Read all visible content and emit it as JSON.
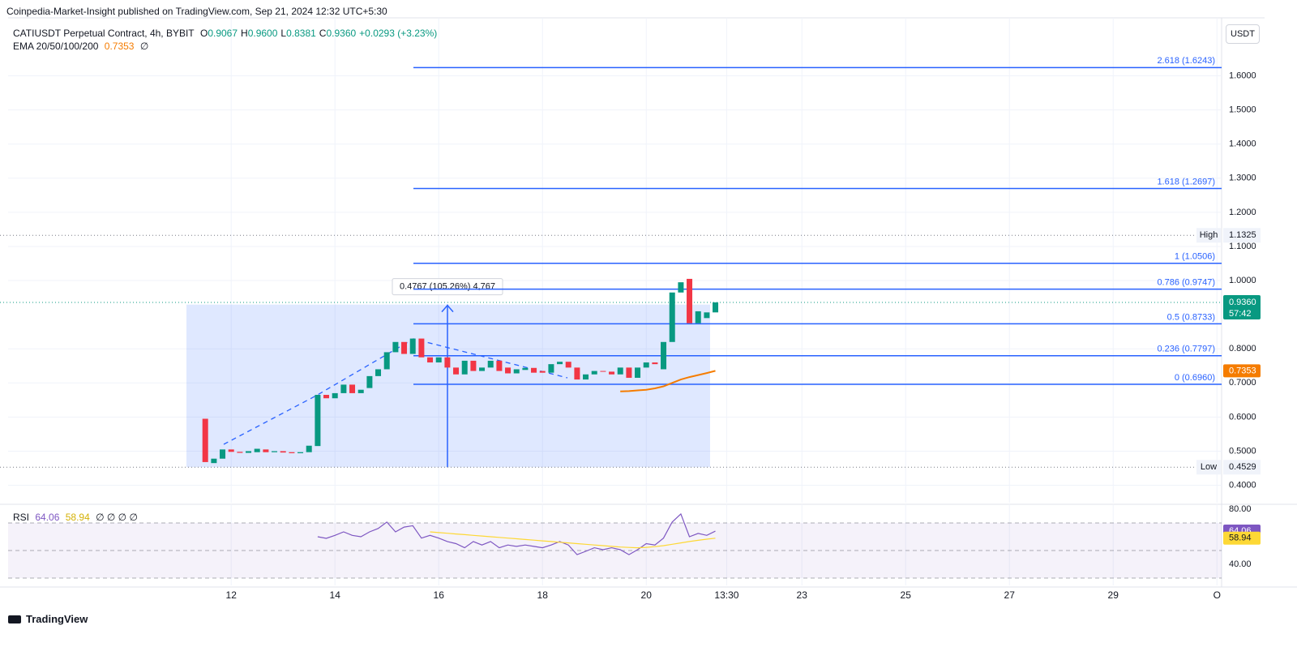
{
  "header": {
    "published": "Coinpedia-Market-Insight published on TradingView.com, Sep 21, 2024 12:32 UTC+5:30",
    "currency_button": "USDT"
  },
  "footer": {
    "logo": "TradingView"
  },
  "chart_data": {
    "type": "candlestick",
    "title": "CATIUSDT Perpetual Contract, 4h, BYBIT",
    "ohlc_legend": [
      {
        "key": "O",
        "text": "0.9067"
      },
      {
        "key": "H",
        "text": "0.9600"
      },
      {
        "key": "L",
        "text": "0.8381"
      },
      {
        "key": "C",
        "text": "0.9360"
      }
    ],
    "change": "+0.0293 (+3.23%)",
    "up_color": "#089981",
    "down_color": "#f23645",
    "x": [
      11.5,
      11.667,
      11.833,
      12,
      12.167,
      12.333,
      12.5,
      12.667,
      12.833,
      13,
      13.167,
      13.333,
      13.5,
      13.667,
      13.833,
      14,
      14.167,
      14.333,
      14.5,
      14.667,
      14.833,
      15,
      15.167,
      15.333,
      15.5,
      15.667,
      15.833,
      16,
      16.167,
      16.333,
      16.5,
      16.667,
      16.833,
      17,
      17.167,
      17.333,
      17.5,
      17.667,
      17.833,
      18,
      18.167,
      18.333,
      18.5,
      18.667,
      18.833,
      19,
      19.167,
      19.333,
      19.5,
      19.667,
      19.833,
      20,
      20.167,
      20.333,
      20.5,
      20.667,
      20.833,
      21,
      21.167,
      21.333
    ],
    "open": [
      0.595,
      0.465,
      0.478,
      0.505,
      0.498,
      0.495,
      0.497,
      0.505,
      0.497,
      0.5,
      0.497,
      0.494,
      0.497,
      0.515,
      0.665,
      0.655,
      0.67,
      0.695,
      0.67,
      0.685,
      0.72,
      0.74,
      0.79,
      0.82,
      0.785,
      0.83,
      0.775,
      0.76,
      0.775,
      0.745,
      0.725,
      0.765,
      0.735,
      0.745,
      0.765,
      0.745,
      0.728,
      0.738,
      0.744,
      0.735,
      0.73,
      0.755,
      0.762,
      0.745,
      0.71,
      0.725,
      0.735,
      0.733,
      0.725,
      0.745,
      0.715,
      0.745,
      0.76,
      0.74,
      0.82,
      0.965,
      1.005,
      0.875,
      0.89,
      0.9067
    ],
    "high": {
      "label": "High",
      "value": 1.1325
    },
    "low": {
      "label": "Low",
      "value": 0.4529
    },
    "close": [
      0.468,
      0.478,
      0.505,
      0.498,
      0.495,
      0.5,
      0.507,
      0.497,
      0.5,
      0.496,
      0.494,
      0.497,
      0.516,
      0.665,
      0.655,
      0.67,
      0.695,
      0.67,
      0.68,
      0.72,
      0.74,
      0.79,
      0.82,
      0.785,
      0.83,
      0.775,
      0.76,
      0.775,
      0.745,
      0.725,
      0.765,
      0.735,
      0.745,
      0.765,
      0.735,
      0.728,
      0.74,
      0.744,
      0.73,
      0.73,
      0.755,
      0.762,
      0.745,
      0.71,
      0.725,
      0.735,
      0.733,
      0.725,
      0.745,
      0.715,
      0.745,
      0.76,
      0.755,
      0.82,
      0.965,
      0.995,
      0.875,
      0.91,
      0.9067,
      0.936
    ],
    "series": [
      {
        "name": "EMA 20/50/100/200",
        "color": "#f57c00",
        "last_label": "0.7353",
        "legend_extra": "∅",
        "values": [
          null,
          null,
          null,
          null,
          null,
          null,
          null,
          null,
          null,
          null,
          null,
          null,
          null,
          null,
          null,
          null,
          null,
          null,
          null,
          null,
          null,
          null,
          null,
          null,
          null,
          null,
          null,
          null,
          null,
          null,
          null,
          null,
          null,
          null,
          null,
          null,
          null,
          null,
          null,
          null,
          null,
          null,
          null,
          null,
          null,
          null,
          null,
          null,
          0.675,
          0.676,
          0.678,
          0.68,
          0.684,
          0.69,
          0.7,
          0.71,
          0.717,
          0.723,
          0.729,
          0.7353
        ]
      },
      {
        "name": "RSI",
        "color": "#7e57c2",
        "axis": "y2",
        "last_label": "64.06",
        "legend_extra": "∅ ∅ ∅ ∅",
        "values": [
          null,
          null,
          null,
          null,
          null,
          null,
          null,
          null,
          null,
          null,
          null,
          null,
          null,
          60,
          58.8,
          61,
          63.5,
          61,
          60,
          63.5,
          66,
          70.6,
          63.5,
          67,
          68,
          59,
          61,
          59,
          56.5,
          55,
          52,
          56.5,
          54,
          56.5,
          52,
          54,
          53,
          54,
          53,
          52,
          54,
          56.5,
          54,
          47,
          49.4,
          52,
          50.6,
          52,
          50.6,
          47,
          50.6,
          55,
          54,
          59,
          70.6,
          76.5,
          60,
          62.4,
          61,
          64.06
        ]
      },
      {
        "color": "#fdd835",
        "axis": "y2",
        "last_label": "58.94",
        "values": [
          null,
          null,
          null,
          null,
          null,
          null,
          null,
          null,
          null,
          null,
          null,
          null,
          null,
          null,
          null,
          null,
          null,
          null,
          null,
          null,
          null,
          null,
          null,
          null,
          null,
          null,
          63.5,
          63,
          62.5,
          62,
          61.5,
          61,
          60.5,
          60,
          59.5,
          59,
          58.5,
          58,
          57.5,
          57,
          56.5,
          56,
          55.5,
          55,
          54.5,
          54,
          53.5,
          53,
          52.5,
          52.2,
          52,
          52.3,
          52.8,
          53.5,
          54.5,
          55.5,
          56.5,
          57.4,
          58.2,
          58.94
        ]
      }
    ],
    "xlim": [
      7.7,
      31.09
    ],
    "xticks": [
      12,
      14,
      16,
      18,
      20,
      {
        "value": 21.55,
        "label": "13:30"
      },
      23,
      25,
      27,
      29,
      {
        "value": 31,
        "label": "O"
      }
    ],
    "ylim": [
      0.349,
      1.77
    ],
    "yticks": [
      {
        "value": 0.4,
        "label": "0.4000"
      },
      {
        "value": 0.5,
        "label": "0.5000"
      },
      {
        "value": 0.6,
        "label": "0.6000"
      },
      {
        "value": 0.7,
        "label": "0.7000"
      },
      {
        "value": 0.8,
        "label": "0.8000"
      },
      {
        "value": 1.0,
        "label": "1.0000"
      },
      {
        "value": 1.1,
        "label": "1.1000"
      },
      {
        "value": 1.2,
        "label": "1.2000"
      },
      {
        "value": 1.3,
        "label": "1.3000"
      },
      {
        "value": 1.4,
        "label": "1.4000"
      },
      {
        "value": 1.5,
        "label": "1.5000"
      },
      {
        "value": 1.6,
        "label": "1.6000"
      }
    ],
    "y2lim": [
      24.7,
      83.5
    ],
    "y2ticks": [
      {
        "value": 80,
        "label": "80.00"
      },
      {
        "value": 40,
        "label": "40.00"
      }
    ],
    "rsi_bands": {
      "upper": 70,
      "middle": 50,
      "lower": 30
    },
    "grid": true,
    "fib_levels": [
      {
        "label": "2.618 (1.6243)",
        "value": 1.6243
      },
      {
        "label": "1.618 (1.2697)",
        "value": 1.2697
      },
      {
        "label": "1 (1.0506)",
        "value": 1.0506
      },
      {
        "label": "0.786 (0.9747)",
        "value": 0.9747
      },
      {
        "label": "0.5 (0.8733)",
        "value": 0.8733
      },
      {
        "label": "0.236 (0.7797)",
        "value": 0.7797
      },
      {
        "label": "0 (0.6960)",
        "value": 0.696
      }
    ],
    "fib_color": "#2962ff",
    "last_price": {
      "value": 0.936,
      "label": "0.9360",
      "countdown": "57:42"
    },
    "range_measure": {
      "label": "0.4767 (105.26%) 4,767",
      "top": 0.9296,
      "bottom": 0.4529
    }
  }
}
